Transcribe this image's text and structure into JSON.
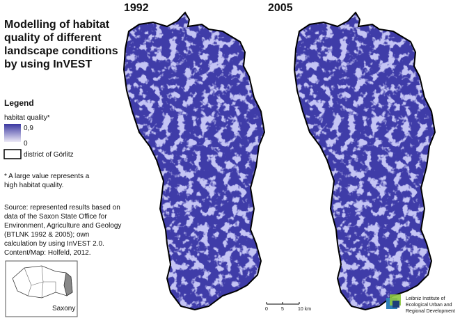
{
  "title": {
    "lines": [
      "Modelling of habitat",
      "quality of different",
      "landscape conditions",
      "by using InVEST"
    ]
  },
  "maps": [
    {
      "label": "1992"
    },
    {
      "label": "2005"
    }
  ],
  "legend": {
    "heading": "Legend",
    "quality_label": "habitat quality*",
    "high": "0,9",
    "low": "0",
    "district": "district of Görlitz"
  },
  "note": {
    "lines": [
      "* A large value represents a",
      "high habitat quality."
    ]
  },
  "source": {
    "lines": [
      "Source: represented results based on",
      "data of the Saxon State Office for",
      "Environment, Agriculture and Geology",
      "(BTLNK 1992 & 2005); own",
      "calculation by using InVEST 2.0.",
      "Content/Map: Holfeld, 2012."
    ]
  },
  "inset": {
    "label": "Saxony"
  },
  "scale_bar": {
    "labels": [
      "0",
      "5",
      "10 km"
    ]
  },
  "logo": {
    "lines": [
      "Leibniz Institute of",
      "Ecological Urban and",
      "Regional Development"
    ]
  }
}
